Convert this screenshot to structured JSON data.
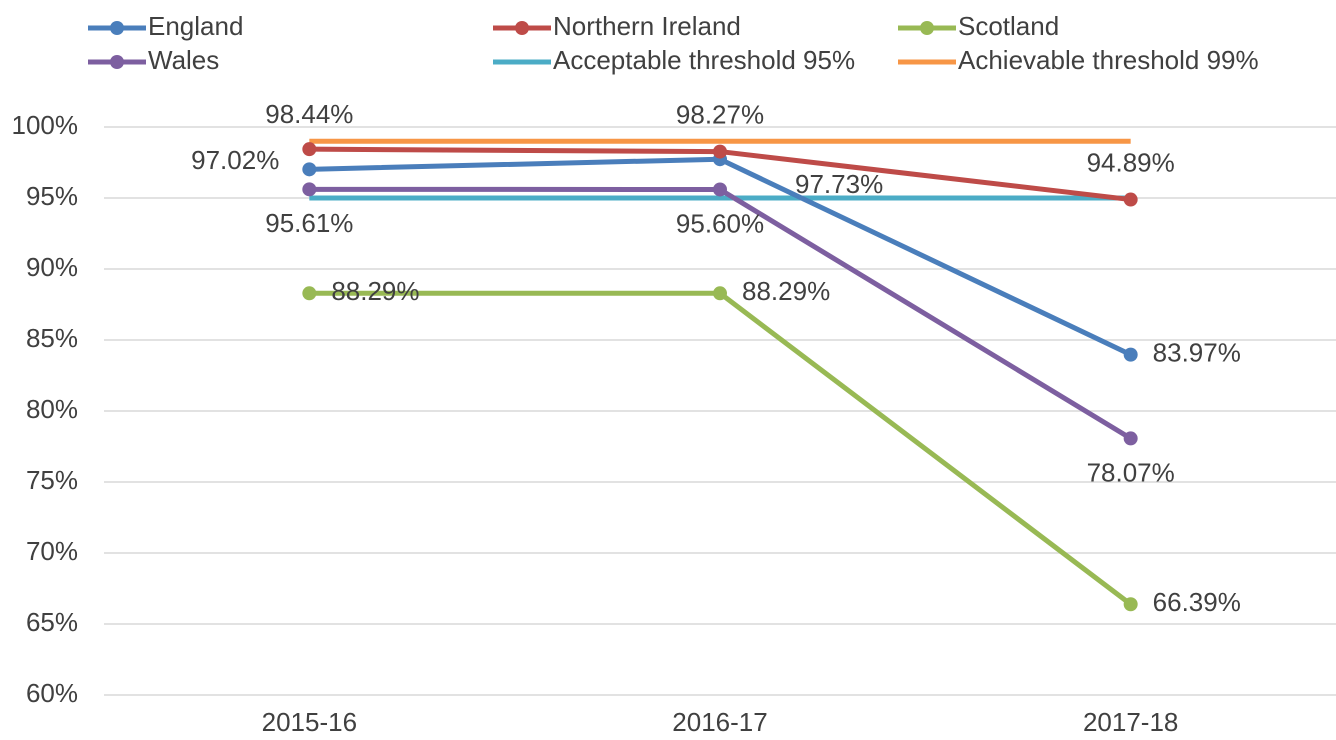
{
  "chart_data": {
    "type": "line",
    "categories": [
      "2015-16",
      "2016-17",
      "2017-18"
    ],
    "series": [
      {
        "name": "England",
        "color": "#4a7ebb",
        "markers": true,
        "values": [
          97.02,
          97.73,
          83.97
        ],
        "value_labels": [
          "97.02%",
          "97.73%",
          "83.97%"
        ]
      },
      {
        "name": "Northern Ireland",
        "color": "#be4b48",
        "markers": true,
        "values": [
          98.44,
          98.27,
          94.89
        ],
        "value_labels": [
          "98.44%",
          "98.27%",
          "94.89%"
        ]
      },
      {
        "name": "Scotland",
        "color": "#98b954",
        "markers": true,
        "values": [
          88.29,
          88.29,
          66.39
        ],
        "value_labels": [
          "88.29%",
          "88.29%",
          "66.39%"
        ]
      },
      {
        "name": "Wales",
        "color": "#7d5fa0",
        "markers": true,
        "values": [
          95.61,
          95.6,
          78.07
        ],
        "value_labels": [
          "95.61%",
          "95.60%",
          "78.07%"
        ]
      },
      {
        "name": "Acceptable threshold 95%",
        "color": "#4bacc6",
        "markers": false,
        "values": [
          95,
          95,
          95
        ]
      },
      {
        "name": "Achievable threshold 99%",
        "color": "#f79646",
        "markers": false,
        "values": [
          99,
          99,
          99
        ]
      }
    ],
    "ylim": [
      60,
      100
    ],
    "yticks": [
      {
        "value": 60,
        "label": "60%"
      },
      {
        "value": 65,
        "label": "65%"
      },
      {
        "value": 70,
        "label": "70%"
      },
      {
        "value": 75,
        "label": "75%"
      },
      {
        "value": 80,
        "label": "80%"
      },
      {
        "value": 85,
        "label": "85%"
      },
      {
        "value": 90,
        "label": "90%"
      },
      {
        "value": 95,
        "label": "95%"
      },
      {
        "value": 100,
        "label": "100%"
      }
    ],
    "grid": true,
    "legend": "top"
  }
}
